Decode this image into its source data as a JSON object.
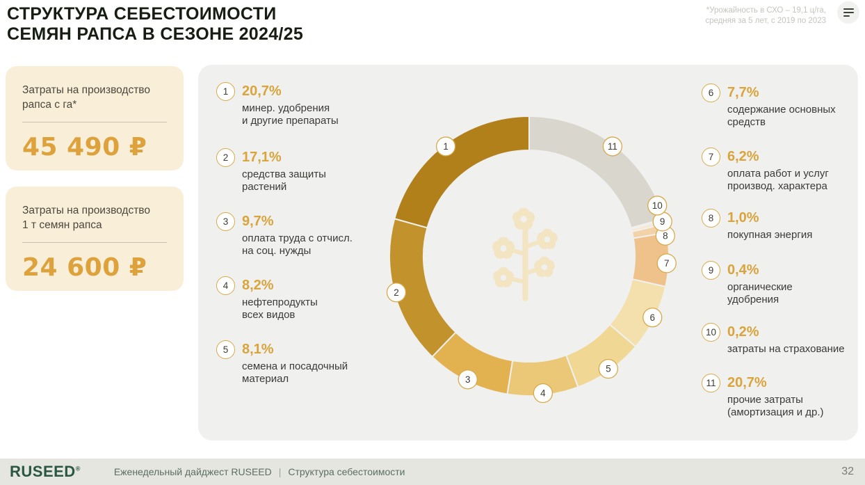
{
  "header": {
    "title": "СТРУКТУРА СЕБЕСТОИМОСТИ\nСЕМЯН РАПСА В СЕЗОНЕ 2024/25",
    "note": "*Урожайность в СХО – 19,1 ц/га,\nсредняя за 5 лет, с 2019 по 2023"
  },
  "stat_cards": [
    {
      "label": "Затраты на производство\nрапса с га*",
      "value": "45 490 ₽"
    },
    {
      "label": "Затраты на производство\n1 т семян рапса",
      "value": "24 600 ₽"
    }
  ],
  "chart_data": {
    "type": "donut",
    "title": "Структура себестоимости семян рапса в сезоне 2024/25",
    "unit": "%",
    "slices": [
      {
        "n": 1,
        "value": 20.7,
        "value_label": "20,7%",
        "label": "минер. удобрения\nи другие препараты",
        "color": "#b1801a"
      },
      {
        "n": 2,
        "value": 17.1,
        "value_label": "17,1%",
        "label": "средства защиты\nрастений",
        "color": "#c2932c"
      },
      {
        "n": 3,
        "value": 9.7,
        "value_label": "9,7%",
        "label": "оплата труда с отчисл.\nна соц. нужды",
        "color": "#e2b250"
      },
      {
        "n": 4,
        "value": 8.2,
        "value_label": "8,2%",
        "label": "нефтепродукты\nвсех видов",
        "color": "#ebc878"
      },
      {
        "n": 5,
        "value": 8.1,
        "value_label": "8,1%",
        "label": "семена и посадочный\nматериал",
        "color": "#f1d794"
      },
      {
        "n": 6,
        "value": 7.7,
        "value_label": "7,7%",
        "label": "содержание основных\nсредств",
        "color": "#f4e0ac"
      },
      {
        "n": 7,
        "value": 6.2,
        "value_label": "6,2%",
        "label": "оплата работ и услуг\nпроизвод. характера",
        "color": "#efc28b"
      },
      {
        "n": 8,
        "value": 1.0,
        "value_label": "1,0%",
        "label": "покупная энергия",
        "color": "#f2d2a6"
      },
      {
        "n": 9,
        "value": 0.4,
        "value_label": "0,4%",
        "label": "органические\nудобрения",
        "color": "#f8e8cf"
      },
      {
        "n": 10,
        "value": 0.2,
        "value_label": "0,2%",
        "label": "затраты на страхование",
        "color": "#f2e8e0"
      },
      {
        "n": 11,
        "value": 20.7,
        "value_label": "20,7%",
        "label": "прочие затраты\n(амортизация и др.)",
        "color": "#d9d6ce"
      }
    ],
    "layout": {
      "direction": "counterclockwise_from_top",
      "legend_left_slices": [
        1,
        2,
        3,
        4,
        5
      ],
      "legend_right_slices": [
        6,
        7,
        8,
        9,
        10,
        11
      ],
      "badge_angle_overrides": {
        "7": 93,
        "8": 81.5,
        "9": 75.5,
        "10": 68.5
      }
    },
    "accent_color": "#d9a43c",
    "watermark": "rapeseed-flower-branch"
  },
  "footer": {
    "logo": "RUSEED",
    "logo_mark": "®",
    "digest": "Еженедельный дайджест RUSEED",
    "separator": "|",
    "section": "Структура себестоимости",
    "page": "32"
  }
}
